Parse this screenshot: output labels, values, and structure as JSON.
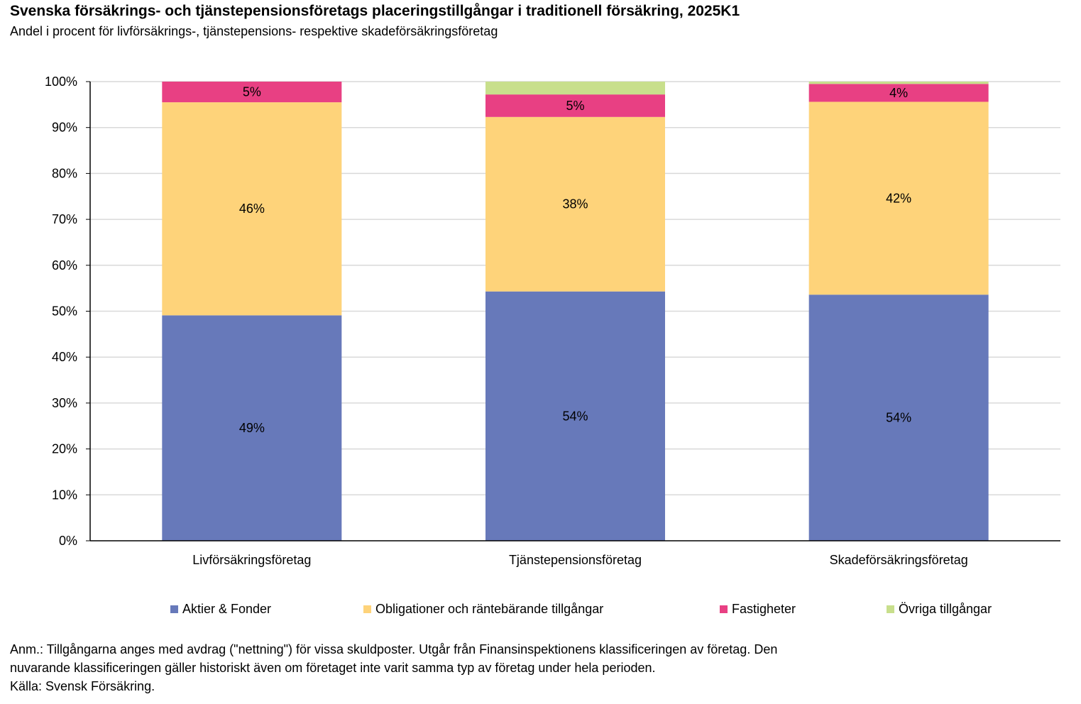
{
  "chart_data": {
    "type": "bar",
    "stacked": true,
    "title": "Svenska försäkrings- och tjänstepensionsföretags placeringstillgångar i traditionell försäkring, 2025K1",
    "subtitle": "Andel i procent för livförsäkrings-, tjänstepensions- respektive skadeförsäkringsföretag",
    "categories": [
      "Livförsäkringsföretag",
      "Tjänstepensionsföretag",
      "Skadeförsäkringsföretag"
    ],
    "series": [
      {
        "name": "Aktier & Fonder",
        "color": "#6779BA",
        "values": [
          49.1,
          54.3,
          53.6
        ],
        "labels": [
          "49%",
          "54%",
          "54%"
        ]
      },
      {
        "name": "Obligationer och räntebärande tillgångar",
        "color": "#FED37A",
        "values": [
          46.4,
          38.0,
          42.0
        ],
        "labels": [
          "46%",
          "38%",
          "42%"
        ]
      },
      {
        "name": "Fastigheter",
        "color": "#E84083",
        "values": [
          4.5,
          4.9,
          3.9
        ],
        "labels": [
          "5%",
          "5%",
          "4%"
        ]
      },
      {
        "name": "Övriga tillgångar",
        "color": "#C8DF8C",
        "values": [
          0.0,
          2.8,
          0.5
        ],
        "labels": [
          "",
          "",
          ""
        ]
      }
    ],
    "y_ticks": [
      "0%",
      "10%",
      "20%",
      "30%",
      "40%",
      "50%",
      "60%",
      "70%",
      "80%",
      "90%",
      "100%"
    ],
    "ylim": [
      0,
      100
    ],
    "grid": true,
    "legend_position": "bottom"
  },
  "notes": {
    "line1": "Anm.: Tillgångarna anges med avdrag (\"nettning\") för vissa skuldposter. Utgår från Finansinspektionens klassificeringen av företag. Den",
    "line2": "nuvarande  klassificeringen gäller historiskt även om företaget inte varit samma typ av företag under hela perioden.",
    "source": "Källa: Svensk Försäkring."
  }
}
